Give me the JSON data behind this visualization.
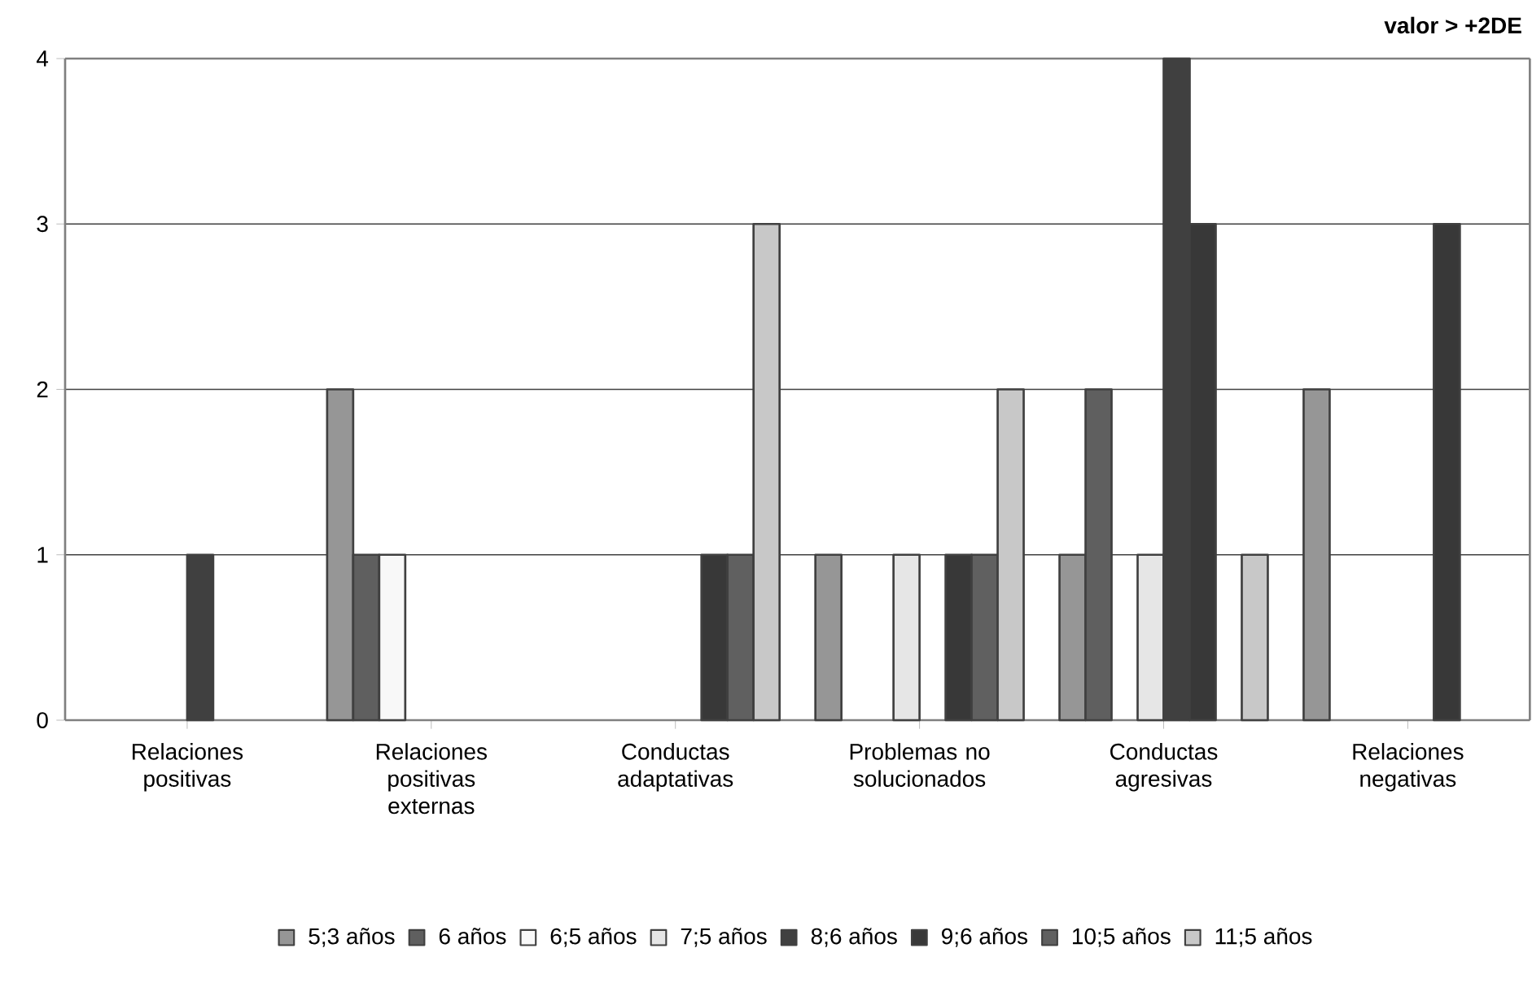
{
  "chart_data": {
    "type": "bar",
    "title": "valor > +2DE",
    "categories": [
      "Relaciones positivas",
      "Relaciones positivas externas",
      "Conductas adaptativas",
      "Problemas no solucionados",
      "Conductas agresivas",
      "Relaciones negativas"
    ],
    "series": [
      {
        "name": "5;3 años",
        "color": "#969696",
        "values": [
          null,
          2,
          null,
          1,
          1,
          2
        ]
      },
      {
        "name": "6 años",
        "color": "#5f5f5f",
        "values": [
          null,
          1,
          null,
          null,
          2,
          null
        ]
      },
      {
        "name": "6;5 años",
        "color": "#f8f8f8",
        "values": [
          null,
          1,
          null,
          null,
          null,
          null
        ]
      },
      {
        "name": "7;5 años",
        "color": "#e6e6e6",
        "values": [
          null,
          null,
          null,
          1,
          1,
          null
        ]
      },
      {
        "name": "8;6 años",
        "color": "#404040",
        "values": [
          1,
          null,
          null,
          null,
          4,
          null
        ]
      },
      {
        "name": "9;6 años",
        "color": "#383838",
        "values": [
          null,
          null,
          1,
          1,
          3,
          3
        ]
      },
      {
        "name": "10;5 años",
        "color": "#606060",
        "values": [
          null,
          null,
          1,
          1,
          null,
          null
        ]
      },
      {
        "name": "11;5 años",
        "color": "#c8c8c8",
        "values": [
          null,
          null,
          3,
          2,
          1,
          null
        ]
      }
    ],
    "ylim": [
      0,
      4
    ],
    "yticks": [
      0,
      1,
      2,
      3,
      4
    ],
    "grid": "y",
    "legend": "bottom"
  }
}
